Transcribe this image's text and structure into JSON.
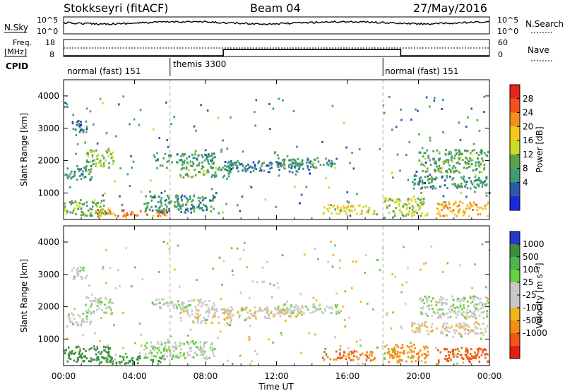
{
  "header": {
    "station": "Stokkseyri (fitACF)",
    "beam": "Beam 04",
    "date": "27/May/2016"
  },
  "aux_panels": {
    "nsky_label": "N.Sky",
    "nsky_ticks": [
      "10^5",
      "10^0"
    ],
    "nsearch_label": "N.Search",
    "nsearch_ticks": [
      "10^5",
      "10^0"
    ],
    "freq_label_line1": "Freq.",
    "freq_label_line2": "[MHz]",
    "freq_ticks": [
      "18",
      "8"
    ],
    "nave_label": "Nave",
    "nave_ticks": [
      "60",
      "0"
    ],
    "cpid_label": "CPID",
    "cpid_segments": [
      {
        "label": "normal (fast) 151",
        "start_hour": 0
      },
      {
        "label": "themis 3300",
        "start_hour": 6
      },
      {
        "label": "normal (fast) 151",
        "start_hour": 18
      }
    ]
  },
  "x_axis": {
    "label": "Time UT",
    "ticks": [
      "00:00",
      "04:00",
      "08:00",
      "12:00",
      "16:00",
      "20:00",
      "00:00"
    ],
    "range_hours": [
      0,
      24
    ]
  },
  "power_panel": {
    "ylabel": "Slant Range [km]",
    "yticks": [
      "4000",
      "3000",
      "2000",
      "1000"
    ],
    "colorbar_label": "Power [dB]",
    "colorbar_ticks": [
      "28",
      "24",
      "20",
      "16",
      "12",
      "8",
      "4"
    ],
    "colorbar_colors": [
      "#e8241c",
      "#f0541a",
      "#f5901a",
      "#f5c81a",
      "#c8dc28",
      "#5aa050",
      "#3c9c78",
      "#2a5aa8",
      "#1a28e0"
    ]
  },
  "velocity_panel": {
    "ylabel": "Slant Range [km]",
    "yticks": [
      "4000",
      "3000",
      "2000",
      "1000"
    ],
    "colorbar_label": "Velocity [m s⁻¹]",
    "colorbar_ticks": [
      "1000",
      "500",
      "100",
      "25",
      "-25",
      "-100",
      "-500",
      "-1000"
    ],
    "colorbar_colors": [
      "#2838c8",
      "#3c8c3c",
      "#50b450",
      "#64d23c",
      "#c8c8c8",
      "#c8c8c8",
      "#f5b41e",
      "#f58c14",
      "#f05a14",
      "#e81e14"
    ]
  },
  "chart_data": {
    "type": "heatmap",
    "x_unit": "hours UT",
    "y_unit": "km",
    "xlim": [
      0,
      24
    ],
    "ylim": [
      180,
      4500
    ],
    "freq_mhz": [
      {
        "start": 0,
        "end": 9,
        "value": 8
      },
      {
        "start": 9,
        "end": 19,
        "value": 12
      },
      {
        "start": 19,
        "end": 24,
        "value": 8
      }
    ],
    "mode_change_hours": [
      6,
      18
    ],
    "power_regions": [
      {
        "t0": 0.1,
        "t1": 1.6,
        "r0": 1350,
        "r1": 1800,
        "db": 10
      },
      {
        "t0": 1.2,
        "t1": 2.8,
        "r0": 1750,
        "r1": 2300,
        "db": 14
      },
      {
        "t0": 0.4,
        "t1": 1.3,
        "r0": 2800,
        "r1": 3200,
        "db": 8
      },
      {
        "t0": 0.0,
        "t1": 2.6,
        "r0": 250,
        "r1": 750,
        "db": 14
      },
      {
        "t0": 1.8,
        "t1": 5.8,
        "r0": 200,
        "r1": 450,
        "db": 24
      },
      {
        "t0": 5.0,
        "t1": 8.5,
        "r0": 1900,
        "r1": 2200,
        "db": 10
      },
      {
        "t0": 6.5,
        "t1": 9.5,
        "r0": 1450,
        "r1": 1900,
        "db": 12
      },
      {
        "t0": 4.5,
        "t1": 8.5,
        "r0": 350,
        "r1": 900,
        "db": 10
      },
      {
        "t0": 9.0,
        "t1": 13.5,
        "r0": 1600,
        "r1": 1950,
        "db": 8
      },
      {
        "t0": 12.0,
        "t1": 15.5,
        "r0": 1750,
        "r1": 2050,
        "db": 10
      },
      {
        "t0": 14.5,
        "t1": 17.5,
        "r0": 300,
        "r1": 600,
        "db": 18
      },
      {
        "t0": 18.0,
        "t1": 20.5,
        "r0": 250,
        "r1": 800,
        "db": 16
      },
      {
        "t0": 19.5,
        "t1": 23.9,
        "r0": 1100,
        "r1": 1500,
        "db": 10
      },
      {
        "t0": 20.0,
        "t1": 23.9,
        "r0": 1600,
        "r1": 2300,
        "db": 12
      },
      {
        "t0": 21.0,
        "t1": 23.9,
        "r0": 250,
        "r1": 700,
        "db": 22
      }
    ],
    "velocity_regions": [
      {
        "t0": 0.1,
        "t1": 1.6,
        "r0": 1350,
        "r1": 1800,
        "v": 10
      },
      {
        "t0": 1.2,
        "t1": 2.8,
        "r0": 1750,
        "r1": 2300,
        "v": 15
      },
      {
        "t0": 0.4,
        "t1": 1.3,
        "r0": 2800,
        "r1": 3200,
        "v": 5
      },
      {
        "t0": 0.0,
        "t1": 2.6,
        "r0": 250,
        "r1": 750,
        "v": 150
      },
      {
        "t0": 1.8,
        "t1": 5.8,
        "r0": 200,
        "r1": 450,
        "v": 120
      },
      {
        "t0": 5.0,
        "t1": 8.5,
        "r0": 1900,
        "r1": 2200,
        "v": 10
      },
      {
        "t0": 6.5,
        "t1": 9.5,
        "r0": 1450,
        "r1": 1900,
        "v": -10
      },
      {
        "t0": 4.5,
        "t1": 8.5,
        "r0": 350,
        "r1": 900,
        "v": 20
      },
      {
        "t0": 9.0,
        "t1": 13.5,
        "r0": 1600,
        "r1": 1950,
        "v": -15
      },
      {
        "t0": 12.0,
        "t1": 15.5,
        "r0": 1750,
        "r1": 2050,
        "v": 10
      },
      {
        "t0": 14.5,
        "t1": 17.5,
        "r0": 300,
        "r1": 600,
        "v": -300
      },
      {
        "t0": 18.0,
        "t1": 20.5,
        "r0": 250,
        "r1": 800,
        "v": -250
      },
      {
        "t0": 19.5,
        "t1": 23.9,
        "r0": 1100,
        "r1": 1500,
        "v": -10
      },
      {
        "t0": 20.0,
        "t1": 23.9,
        "r0": 1600,
        "r1": 2300,
        "v": 10
      },
      {
        "t0": 21.0,
        "t1": 23.9,
        "r0": 250,
        "r1": 700,
        "v": -400
      }
    ]
  }
}
